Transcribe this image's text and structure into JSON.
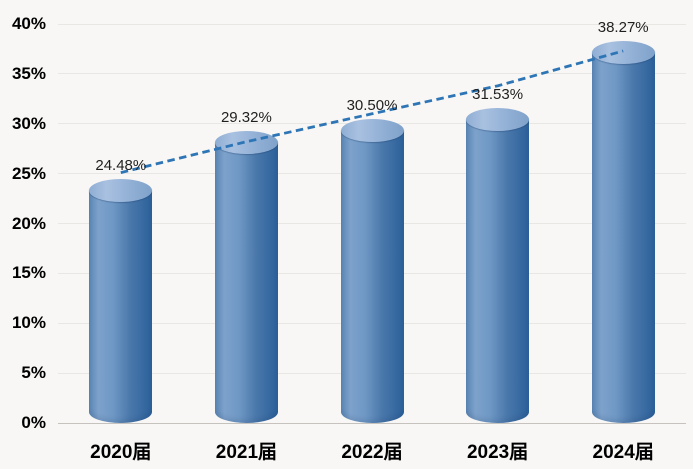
{
  "chart_data": {
    "type": "bar",
    "bar_style": "cylinder-3d",
    "categories": [
      "2020届",
      "2021届",
      "2022届",
      "2023届",
      "2024届"
    ],
    "values": [
      24.48,
      29.32,
      30.5,
      31.53,
      38.27
    ],
    "data_labels": [
      "24.48%",
      "29.32%",
      "30.50%",
      "31.53%",
      "38.27%"
    ],
    "xlabel": "",
    "ylabel": "",
    "ylim": [
      0,
      40
    ],
    "ytick_step": 5,
    "ytick_labels": [
      "0%",
      "5%",
      "10%",
      "15%",
      "20%",
      "25%",
      "30%",
      "35%",
      "40%"
    ],
    "grid": "horizontal",
    "legend_position": "none",
    "trendline": {
      "style": "dashed",
      "color": "#2E75B6",
      "values": [
        25.1,
        28.2,
        31.0,
        33.8,
        37.3
      ]
    },
    "colors": {
      "background": "#F8F7F5",
      "gridline": "#E9E7E3",
      "axis_line": "#C6C3BF",
      "axis_text": "#000000",
      "label_text": "#1F1F1F",
      "trend_blue": "#2E75B6",
      "bar_left": "#5B86B5",
      "bar_highlight": "#7DA2CB",
      "bar_main": "#6F98C5",
      "bar_mid": "#4A78AB",
      "bar_shadow": "#2F639C",
      "bar_top_left": "#8FADD3",
      "bar_top_light": "#A9C1E1",
      "bar_top_mid": "#95B2D7",
      "bar_top_edge": "#7FA2CA"
    }
  }
}
